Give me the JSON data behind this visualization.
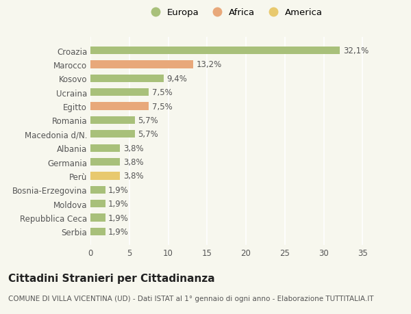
{
  "categories": [
    "Serbia",
    "Repubblica Ceca",
    "Moldova",
    "Bosnia-Erzegovina",
    "Perù",
    "Germania",
    "Albania",
    "Macedonia d/N.",
    "Romania",
    "Egitto",
    "Ucraina",
    "Kosovo",
    "Marocco",
    "Croazia"
  ],
  "values": [
    1.9,
    1.9,
    1.9,
    1.9,
    3.8,
    3.8,
    3.8,
    5.7,
    5.7,
    7.5,
    7.5,
    9.4,
    13.2,
    32.1
  ],
  "labels": [
    "1,9%",
    "1,9%",
    "1,9%",
    "1,9%",
    "3,8%",
    "3,8%",
    "3,8%",
    "5,7%",
    "5,7%",
    "7,5%",
    "7,5%",
    "9,4%",
    "13,2%",
    "32,1%"
  ],
  "colors": [
    "#a8c07a",
    "#a8c07a",
    "#a8c07a",
    "#a8c07a",
    "#e8c96e",
    "#a8c07a",
    "#a8c07a",
    "#a8c07a",
    "#a8c07a",
    "#e8a87a",
    "#a8c07a",
    "#a8c07a",
    "#e8a87a",
    "#a8c07a"
  ],
  "legend_labels": [
    "Europa",
    "Africa",
    "America"
  ],
  "legend_colors": [
    "#a8c07a",
    "#e8a87a",
    "#e8c96e"
  ],
  "title": "Cittadini Stranieri per Cittadinanza",
  "subtitle": "COMUNE DI VILLA VICENTINA (UD) - Dati ISTAT al 1° gennaio di ogni anno - Elaborazione TUTTITALIA.IT",
  "xlim": [
    0,
    37
  ],
  "xticks": [
    0,
    5,
    10,
    15,
    20,
    25,
    30,
    35
  ],
  "background_color": "#f7f7ee",
  "bar_height": 0.55,
  "label_fontsize": 8.5,
  "tick_fontsize": 8.5,
  "title_fontsize": 11,
  "subtitle_fontsize": 7.5
}
